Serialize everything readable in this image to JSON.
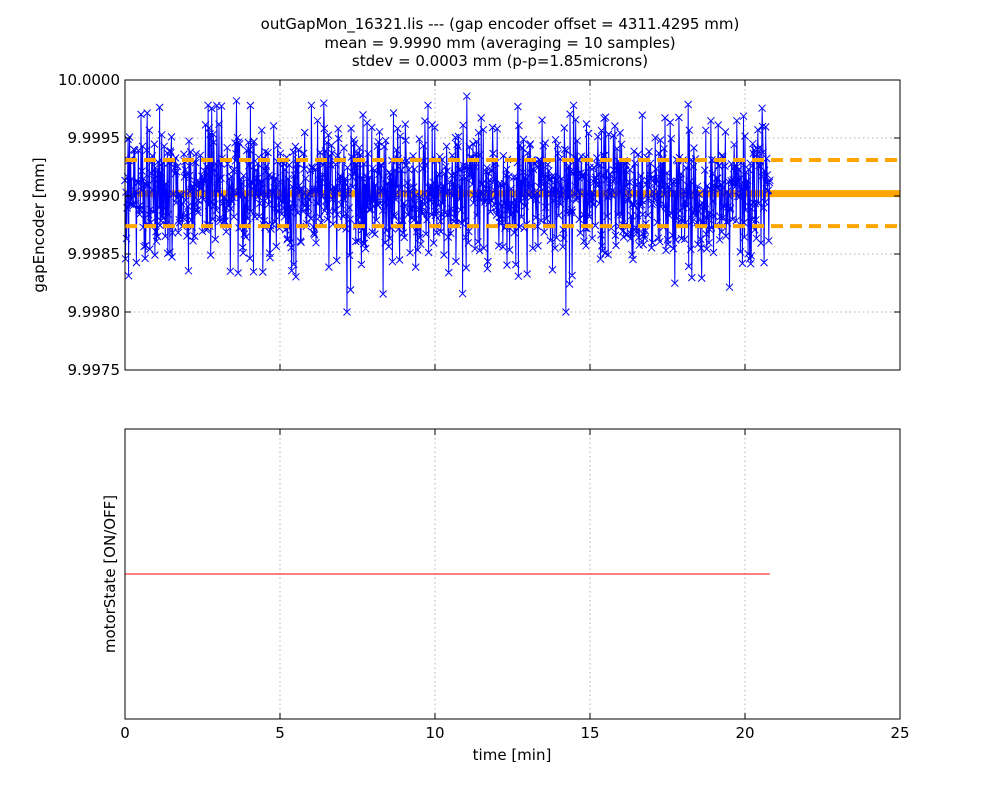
{
  "title": {
    "line1": "outGapMon_16321.lis --- (gap encoder offset = 4311.4295 mm)",
    "line2": "mean = 9.9990 mm (averaging = 10 samples)",
    "line3": "stdev = 0.0003 mm (p-p=1.85microns)"
  },
  "chart_data": [
    {
      "type": "line",
      "ylabel": "gapEncoder [mm]",
      "xlim": [
        0,
        25
      ],
      "ylim": [
        9.9975,
        10.0
      ],
      "x_ticks": [
        0,
        5,
        10,
        15,
        20,
        25
      ],
      "y_ticks": [
        9.9975,
        9.998,
        9.9985,
        9.999,
        9.9995,
        10.0
      ],
      "y_tick_labels": [
        "9.9975",
        "9.9980",
        "9.9985",
        "9.9990",
        "9.9995",
        "10.0000"
      ],
      "grid": true,
      "series": [
        {
          "color": "#0000ff",
          "marker": "x",
          "x_range": [
            0,
            20.8
          ],
          "mean": 9.99902,
          "stdev": 0.0003,
          "min": 9.998,
          "max": 9.99986
        }
      ],
      "reference_lines": [
        {
          "y": 9.99902,
          "style": "solid",
          "color": "#ffa500"
        },
        {
          "y": 9.99931,
          "style": "dashed",
          "color": "#ffa500"
        },
        {
          "y": 9.99874,
          "style": "dashed",
          "color": "#ffa500"
        }
      ]
    },
    {
      "type": "line",
      "xlabel": "time [min]",
      "ylabel": "motorState [ON/OFF]",
      "xlim": [
        0,
        25
      ],
      "x_ticks": [
        0,
        5,
        10,
        15,
        20,
        25
      ],
      "grid": true,
      "series": [
        {
          "color": "#ff0000",
          "x": [
            0,
            20.8
          ],
          "y": [
            0,
            0
          ]
        }
      ]
    }
  ]
}
